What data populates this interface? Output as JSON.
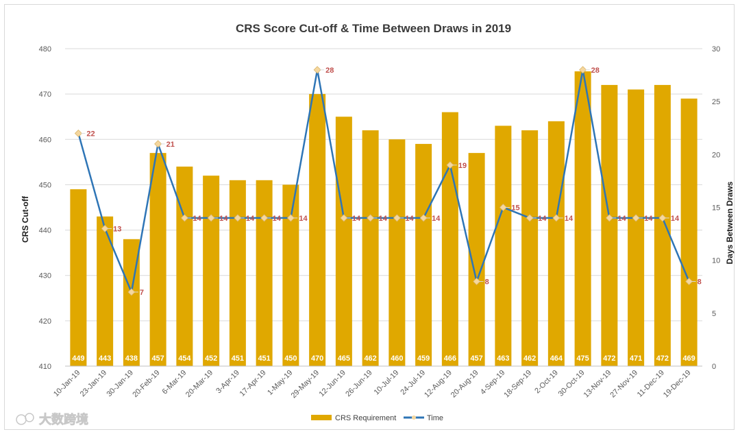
{
  "chart_data": {
    "type": "bar",
    "title": "CRS Score Cut-off & Time Between Draws in 2019",
    "ylabel": "CRS Cut-off",
    "y2label": "Days Between Draws",
    "ylim": [
      410,
      480
    ],
    "yticks": [
      410,
      420,
      430,
      440,
      450,
      460,
      470,
      480
    ],
    "y2lim": [
      0,
      30
    ],
    "y2ticks": [
      0,
      5,
      10,
      15,
      20,
      25,
      30
    ],
    "grid": true,
    "categories": [
      "10-Jan-19",
      "23-Jan-19",
      "30-Jan-19",
      "20-Feb-19",
      "6-Mar-19",
      "20-Mar-19",
      "3-Apr-19",
      "17-Apr-19",
      "1-May-19",
      "29-May-19",
      "12-Jun-19",
      "26-Jun-19",
      "10-Jul-19",
      "24-Jul-19",
      "12-Aug-19",
      "20-Aug-19",
      "4-Sep-19",
      "18-Sep-19",
      "2-Oct-19",
      "30-Oct-19",
      "13-Nov-19",
      "27-Nov-19",
      "11-Dec-19",
      "19-Dec-19"
    ],
    "series": [
      {
        "name": "CRS Requirement",
        "type": "bar",
        "axis": "left",
        "color": "#e0a800",
        "values": [
          449,
          443,
          438,
          457,
          454,
          452,
          451,
          451,
          450,
          470,
          465,
          462,
          460,
          459,
          466,
          457,
          463,
          462,
          464,
          475,
          472,
          471,
          472,
          469
        ]
      },
      {
        "name": "Time",
        "type": "line",
        "axis": "right",
        "color": "#2e75b6",
        "values": [
          22,
          13,
          7,
          21,
          14,
          14,
          14,
          14,
          14,
          28,
          14,
          14,
          14,
          14,
          19,
          8,
          15,
          14,
          14,
          28,
          14,
          14,
          14,
          8
        ]
      }
    ],
    "legend_position": "bottom"
  },
  "colors": {
    "bar": "#e0a800",
    "line": "#2e75b6",
    "marker": "#f5d79e",
    "time_label": "#c0504d"
  },
  "watermark": "大数跨境"
}
